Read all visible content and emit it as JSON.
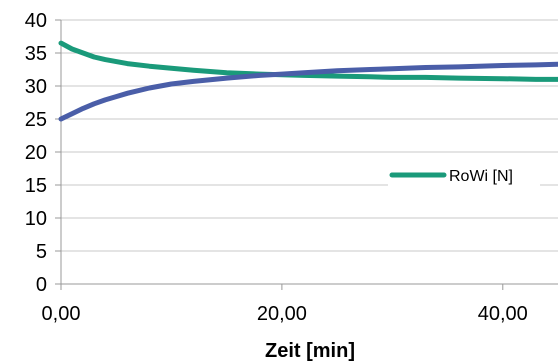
{
  "chart_data": {
    "type": "line",
    "title": "",
    "xlabel": "Zeit [min]",
    "ylabel": "",
    "xlim": [
      0,
      45
    ],
    "ylim": [
      0,
      40
    ],
    "grid": true,
    "legend_position": "right",
    "y_ticks": [
      {
        "value": 0,
        "label": "0"
      },
      {
        "value": 5,
        "label": "5"
      },
      {
        "value": 10,
        "label": "10"
      },
      {
        "value": 15,
        "label": "15"
      },
      {
        "value": 20,
        "label": "20"
      },
      {
        "value": 25,
        "label": "25"
      },
      {
        "value": 30,
        "label": "30"
      },
      {
        "value": 35,
        "label": "35"
      },
      {
        "value": 40,
        "label": "40"
      }
    ],
    "x_ticks": [
      {
        "value": 0,
        "label": "0,00"
      },
      {
        "value": 20,
        "label": "20,00"
      },
      {
        "value": 40,
        "label": "40,00"
      }
    ],
    "series": [
      {
        "name": "RoWi [N]",
        "color": "#1a9a7a",
        "x": [
          0,
          1,
          2,
          3,
          4,
          5,
          6,
          8,
          10,
          12,
          15,
          18,
          20,
          22,
          25,
          28,
          30,
          33,
          36,
          40,
          43,
          45
        ],
        "y": [
          36.5,
          35.6,
          35.0,
          34.4,
          34.0,
          33.7,
          33.4,
          33.0,
          32.7,
          32.4,
          32.0,
          31.8,
          31.7,
          31.6,
          31.5,
          31.4,
          31.3,
          31.3,
          31.2,
          31.1,
          31.0,
          31.0
        ]
      },
      {
        "color": "#4a5ea8",
        "x": [
          0,
          1,
          2,
          3,
          4,
          5,
          6,
          8,
          10,
          12,
          15,
          18,
          20,
          22,
          25,
          28,
          30,
          33,
          36,
          40,
          43,
          45
        ],
        "y": [
          25.0,
          25.8,
          26.6,
          27.3,
          27.9,
          28.4,
          28.9,
          29.7,
          30.3,
          30.7,
          31.2,
          31.6,
          31.8,
          32.0,
          32.3,
          32.5,
          32.6,
          32.8,
          32.9,
          33.1,
          33.2,
          33.3
        ]
      }
    ]
  }
}
